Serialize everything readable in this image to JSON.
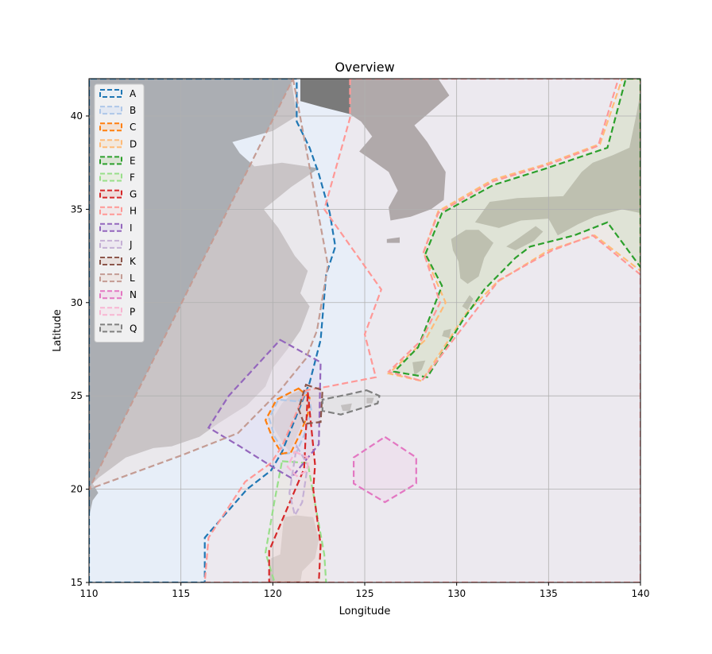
{
  "chart_data": {
    "type": "map",
    "title": "Overview",
    "xlabel": "Longitude",
    "ylabel": "Latitude",
    "xlim": [
      110,
      140
    ],
    "ylim": [
      15,
      42
    ],
    "xticks": [
      110,
      115,
      120,
      125,
      130,
      135,
      140
    ],
    "yticks": [
      15,
      20,
      25,
      30,
      35,
      40
    ],
    "grid": true,
    "legend_position": "upper-left",
    "land_color": "#7a7a7a",
    "sea_color": "#e8eef8",
    "regions": [
      {
        "name": "A",
        "color": "#1f77b4",
        "fill": "#e6eef8",
        "points": [
          [
            110,
            15
          ],
          [
            110,
            42
          ],
          [
            121.3,
            42
          ],
          [
            121.3,
            39.7
          ],
          [
            122,
            38.3
          ],
          [
            122.5,
            36.9
          ],
          [
            123.1,
            34.8
          ],
          [
            123.4,
            33
          ],
          [
            122.9,
            31.5
          ],
          [
            122.6,
            28
          ],
          [
            122,
            25.7
          ],
          [
            120.5,
            22
          ],
          [
            119.9,
            21
          ],
          [
            118.6,
            20
          ],
          [
            116.3,
            17.4
          ],
          [
            116.3,
            15
          ]
        ]
      },
      {
        "name": "B",
        "color": "#aec7e8",
        "fill": "#dbe3f3",
        "points": [
          [
            121.4,
            24.7
          ],
          [
            121.9,
            25.3
          ],
          [
            122.1,
            24.2
          ],
          [
            121.7,
            22.9
          ],
          [
            121.3,
            22
          ],
          [
            120.7,
            21.9
          ],
          [
            120.1,
            22.8
          ],
          [
            119.8,
            23.8
          ],
          [
            120.3,
            24.8
          ]
        ]
      },
      {
        "name": "C",
        "color": "#ff7f0e",
        "fill": "#f3d9c4",
        "points": [
          [
            121.4,
            25.4
          ],
          [
            122,
            24.9
          ],
          [
            121.9,
            24
          ],
          [
            121.5,
            23
          ],
          [
            121,
            22
          ],
          [
            120.5,
            21.9
          ],
          [
            120,
            22.7
          ],
          [
            119.6,
            23.7
          ],
          [
            120.2,
            24.8
          ]
        ]
      },
      {
        "name": "D",
        "color": "#ffbb78",
        "fill": "#f3e2d0",
        "points": [
          [
            128.2,
            32.7
          ],
          [
            129,
            34.9
          ],
          [
            132,
            36.6
          ],
          [
            134.8,
            37.4
          ],
          [
            137.8,
            38.5
          ],
          [
            139,
            42
          ],
          [
            140,
            42
          ],
          [
            140,
            31.7
          ],
          [
            137.5,
            33.6
          ],
          [
            135,
            32.8
          ],
          [
            132.2,
            31.1
          ],
          [
            130.5,
            29.4
          ],
          [
            128.1,
            25.8
          ],
          [
            126.3,
            26.2
          ],
          [
            128.3,
            28
          ],
          [
            129.4,
            30
          ]
        ]
      },
      {
        "name": "E",
        "color": "#2ca02c",
        "fill": "#cfdcc4",
        "points": [
          [
            128.3,
            32.6
          ],
          [
            129.2,
            34.8
          ],
          [
            132,
            36.3
          ],
          [
            134.9,
            37.2
          ],
          [
            138.2,
            38.3
          ],
          [
            139.2,
            42
          ],
          [
            140,
            42
          ],
          [
            140,
            31.9
          ],
          [
            138.2,
            34.3
          ],
          [
            136.4,
            33.6
          ],
          [
            134,
            33
          ],
          [
            133.2,
            32.4
          ],
          [
            131.5,
            30.7
          ],
          [
            130.3,
            29
          ],
          [
            128.4,
            26
          ],
          [
            126.6,
            26.3
          ],
          [
            127.9,
            27.6
          ],
          [
            129.2,
            30.9
          ]
        ]
      },
      {
        "name": "F",
        "color": "#98df8a",
        "fill": "#e4ecd9",
        "points": [
          [
            120.5,
            21.5
          ],
          [
            121.9,
            21.4
          ],
          [
            122.8,
            16.5
          ],
          [
            122.9,
            15
          ],
          [
            120.1,
            15
          ],
          [
            119.6,
            16.6
          ],
          [
            120.1,
            19.4
          ]
        ]
      },
      {
        "name": "G",
        "color": "#d62728",
        "fill": "#eccfcd",
        "points": [
          [
            121.9,
            25.2
          ],
          [
            122.3,
            21.3
          ],
          [
            122.2,
            20
          ],
          [
            122.6,
            17
          ],
          [
            122.5,
            15
          ],
          [
            119.8,
            15
          ],
          [
            119.8,
            16.7
          ],
          [
            121.7,
            21.1
          ]
        ]
      },
      {
        "name": "H",
        "color": "#ff9896",
        "fill": "#f1e3e5",
        "points": [
          [
            124.2,
            42
          ],
          [
            124.2,
            39.9
          ],
          [
            122.8,
            35
          ],
          [
            125.9,
            30.7
          ],
          [
            125,
            28.3
          ],
          [
            125.6,
            26
          ],
          [
            123,
            25.5
          ],
          [
            121.8,
            25.3
          ],
          [
            120.5,
            22.3
          ],
          [
            119.9,
            21.4
          ],
          [
            118.5,
            20.4
          ],
          [
            116.5,
            17.4
          ],
          [
            116.3,
            15
          ],
          [
            140,
            15
          ],
          [
            140,
            31.5
          ],
          [
            137.4,
            33.6
          ],
          [
            135.2,
            32.8
          ],
          [
            132.3,
            31.2
          ],
          [
            128.1,
            25.8
          ],
          [
            126.3,
            26.3
          ],
          [
            128.1,
            28
          ],
          [
            129.1,
            30
          ],
          [
            128.2,
            32.7
          ],
          [
            129,
            34.8
          ],
          [
            132,
            36.5
          ],
          [
            135,
            37.4
          ],
          [
            137.7,
            38.4
          ],
          [
            138.8,
            42
          ]
        ]
      },
      {
        "name": "I",
        "color": "#9467bd",
        "fill": "#e0d8ef",
        "points": [
          [
            120.4,
            28
          ],
          [
            122.6,
            26.8
          ],
          [
            122.5,
            22.4
          ],
          [
            121,
            20.6
          ],
          [
            120.3,
            21
          ],
          [
            118.2,
            22.3
          ],
          [
            116.5,
            23.3
          ],
          [
            117.6,
            25
          ]
        ]
      },
      {
        "name": "J",
        "color": "#c5b0d5",
        "fill": "#ebe2f0",
        "points": [
          [
            121.3,
            22.3
          ],
          [
            121.9,
            21.3
          ],
          [
            121.6,
            19.3
          ],
          [
            121.2,
            18.6
          ],
          [
            120.9,
            19.8
          ]
        ]
      },
      {
        "name": "K",
        "color": "#8c564b",
        "fill": "#e4d7d4",
        "points": [
          [
            121.8,
            25.6
          ],
          [
            122.7,
            25.3
          ],
          [
            122.6,
            23.6
          ],
          [
            121.7,
            23.5
          ],
          [
            121.4,
            24.3
          ]
        ]
      },
      {
        "name": "L",
        "color": "#c49c94",
        "fill": "#ede1de",
        "points": [
          [
            121.1,
            42
          ],
          [
            123,
            32
          ],
          [
            122.4,
            28.5
          ],
          [
            121.8,
            27
          ],
          [
            120.4,
            25.3
          ],
          [
            118.1,
            23
          ],
          [
            115,
            21.8
          ],
          [
            110,
            20
          ]
        ]
      },
      {
        "name": "N",
        "color": "#e377c2",
        "fill": "#f0d8ea",
        "points": [
          [
            126.1,
            22.8
          ],
          [
            127.8,
            21.7
          ],
          [
            127.8,
            20.3
          ],
          [
            126.1,
            19.3
          ],
          [
            124.4,
            20.3
          ],
          [
            124.4,
            21.7
          ]
        ]
      },
      {
        "name": "P",
        "color": "#f7b6d2",
        "fill": "#f4e4ec",
        "points": [
          [
            121.2,
            22
          ],
          [
            121.9,
            21.7
          ],
          [
            121.9,
            21
          ],
          [
            121.3,
            20.7
          ],
          [
            120.8,
            21.2
          ]
        ]
      },
      {
        "name": "Q",
        "color": "#7f7f7f",
        "fill": "#dcdcdc",
        "points": [
          [
            125.1,
            25.3
          ],
          [
            125.8,
            25
          ],
          [
            125.7,
            24.6
          ],
          [
            123.7,
            24
          ],
          [
            122.7,
            24.2
          ],
          [
            122.7,
            24.8
          ],
          [
            124.2,
            25.1
          ]
        ]
      }
    ]
  }
}
